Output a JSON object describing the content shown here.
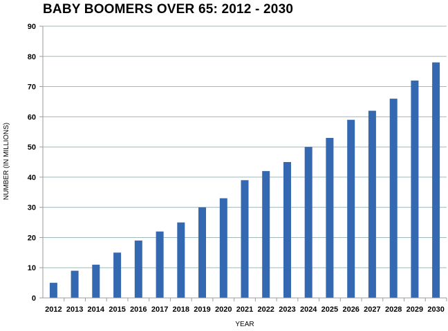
{
  "chart_data": {
    "type": "bar",
    "title": "BABY BOOMERS OVER 65: 2012 - 2030",
    "xlabel": "YEAR",
    "ylabel": "NUMBER (IN MILLIONS)",
    "ylim": [
      0,
      90
    ],
    "yticks": [
      0,
      10,
      20,
      30,
      40,
      50,
      60,
      70,
      80,
      90
    ],
    "grid": true,
    "categories": [
      "2012",
      "2013",
      "2014",
      "2015",
      "2016",
      "2017",
      "2018",
      "2019",
      "2020",
      "2021",
      "2022",
      "2023",
      "2024",
      "2025",
      "2026",
      "2027",
      "2028",
      "2029",
      "2030"
    ],
    "values": [
      5,
      9,
      11,
      15,
      19,
      22,
      25,
      30,
      33,
      39,
      42,
      45,
      50,
      53,
      59,
      62,
      66,
      72,
      78
    ],
    "bar_color": "#3468b0",
    "grid_color": "#9fb8b8"
  }
}
